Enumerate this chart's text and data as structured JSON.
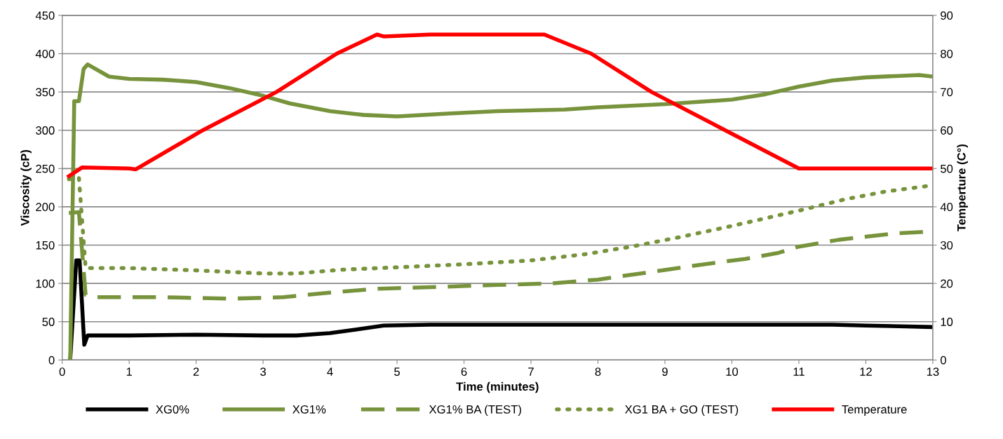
{
  "chart_data": {
    "type": "line",
    "xlabel": "Time (minutes)",
    "ylabel": "Viscosity (cP)",
    "y2label": "Temperture (C°)",
    "xlim": [
      0,
      13
    ],
    "xticks": [
      0,
      1,
      2,
      3,
      4,
      5,
      6,
      7,
      8,
      9,
      10,
      11,
      12,
      13
    ],
    "ylim": [
      0,
      450
    ],
    "yticks": [
      0,
      50,
      100,
      150,
      200,
      250,
      300,
      350,
      400,
      450
    ],
    "y2lim": [
      0,
      90
    ],
    "y2ticks": [
      0,
      10,
      20,
      30,
      40,
      50,
      60,
      70,
      80,
      90
    ],
    "grid": "y",
    "legend": "bottom",
    "series": [
      {
        "name": "XG0%",
        "color": "#000000",
        "line_style": "solid",
        "x": [
          0.12,
          0.21,
          0.26,
          0.33,
          0.38,
          1,
          2,
          3,
          3.5,
          4,
          4.4,
          4.8,
          5.5,
          6.5,
          7.5,
          8.5,
          9.5,
          10.5,
          11.5,
          12,
          12.5,
          13
        ],
        "values": [
          0,
          130,
          130,
          20,
          32,
          32,
          33,
          32,
          32,
          35,
          40,
          45,
          46,
          46,
          46,
          46,
          46,
          46,
          46,
          45,
          44,
          43
        ]
      },
      {
        "name": "XG1%",
        "color": "#77933c",
        "line_style": "solid",
        "x": [
          0.12,
          0.18,
          0.25,
          0.32,
          0.38,
          0.7,
          1,
          1.5,
          2,
          2.5,
          3,
          3.4,
          4,
          4.5,
          5,
          5.8,
          6.5,
          7.5,
          8,
          9,
          9.5,
          10,
          10.5,
          11,
          11.5,
          12,
          12.5,
          12.8,
          13
        ],
        "values": [
          0,
          338,
          338,
          380,
          386,
          370,
          367,
          366,
          363,
          355,
          345,
          335,
          325,
          320,
          318,
          322,
          325,
          327,
          330,
          334,
          337,
          340,
          347,
          357,
          365,
          369,
          371,
          372,
          370
        ]
      },
      {
        "name": "XG1% BA (TEST)",
        "color": "#77933c",
        "line_style": "dashed",
        "x": [
          0.1,
          0.25,
          0.35,
          0.5,
          1.5,
          2.5,
          3.3,
          4,
          4.7,
          5.5,
          6.5,
          7.3,
          8,
          8.8,
          9.5,
          10.2,
          10.7,
          11,
          11.6,
          12,
          12.4,
          13
        ],
        "values": [
          192,
          193,
          85,
          82,
          82,
          80,
          82,
          88,
          93,
          95,
          98,
          100,
          105,
          115,
          124,
          132,
          140,
          148,
          157,
          161,
          165,
          168
        ]
      },
      {
        "name": "XG1 BA + GO (TEST)",
        "color": "#77933c",
        "line_style": "dotted",
        "x": [
          0.1,
          0.25,
          0.35,
          1,
          2,
          3,
          3.5,
          4.2,
          5,
          6,
          7,
          7.8,
          8.5,
          9.2,
          10,
          11,
          11.7,
          12.3,
          13
        ],
        "values": [
          236,
          238,
          120,
          120,
          117,
          113,
          113,
          118,
          121,
          125,
          130,
          138,
          148,
          160,
          175,
          195,
          210,
          220,
          228
        ]
      },
      {
        "name": "Temperature",
        "color": "#ff0000",
        "line_style": "solid",
        "axis": "y2",
        "x": [
          0.1,
          0.3,
          1.0,
          1.1,
          2.1,
          3.2,
          4.1,
          4.7,
          4.8,
          5.5,
          7.2,
          7.9,
          8.8,
          9.9,
          11.0,
          13
        ],
        "values": [
          48,
          50.3,
          50,
          49.8,
          60,
          70,
          80,
          85,
          84.5,
          85,
          85,
          80,
          70,
          60,
          50,
          50
        ]
      }
    ]
  }
}
